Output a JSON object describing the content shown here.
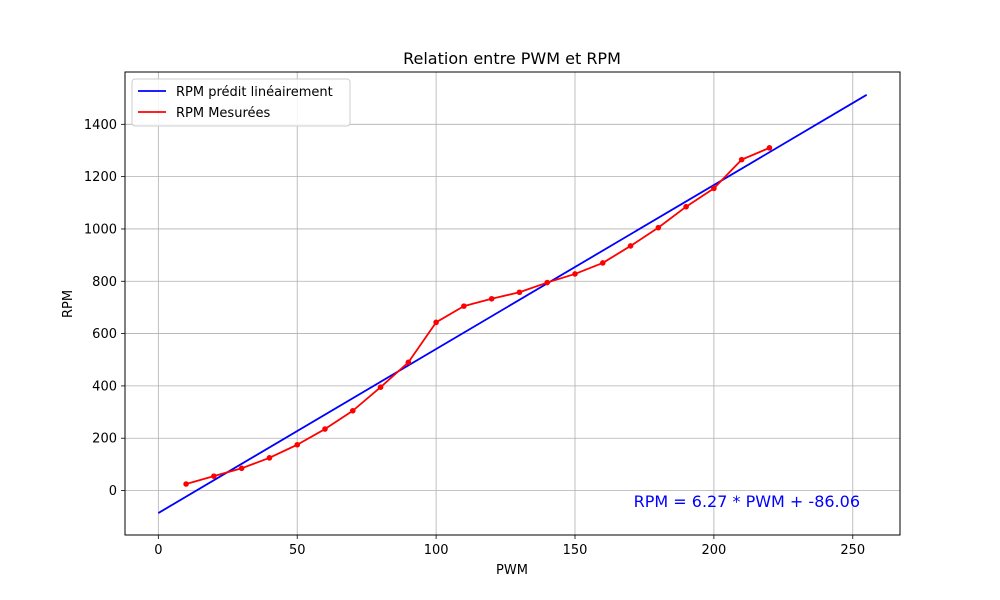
{
  "chart_data": {
    "type": "line",
    "title": "Relation entre PWM et RPM",
    "xlabel": "PWM",
    "ylabel": "RPM",
    "xlim": [
      -12,
      267
    ],
    "ylim": [
      -170,
      1600
    ],
    "xticks": [
      0,
      50,
      100,
      150,
      200,
      250
    ],
    "yticks": [
      0,
      200,
      400,
      600,
      800,
      1000,
      1200,
      1400
    ],
    "grid": true,
    "legend_position": "top-left",
    "series": [
      {
        "name": "RPM prédit linéairement",
        "kind": "line",
        "color": "#0000ff",
        "x": [
          0,
          255
        ],
        "y": [
          -86.06,
          1512.79
        ]
      },
      {
        "name": "RPM Mesurées",
        "kind": "line-markers",
        "color": "#ff0000",
        "x": [
          10,
          20,
          30,
          40,
          50,
          60,
          70,
          80,
          90,
          100,
          110,
          120,
          130,
          140,
          150,
          160,
          170,
          180,
          190,
          200,
          210,
          220
        ],
        "y": [
          25,
          55,
          85,
          125,
          175,
          235,
          305,
          395,
          490,
          643,
          705,
          733,
          758,
          795,
          828,
          870,
          935,
          1005,
          1085,
          1155,
          1265,
          1310
        ]
      }
    ],
    "annotation": {
      "text": "RPM = 6.27 * PWM + -86.06",
      "color": "#0000ff"
    }
  }
}
